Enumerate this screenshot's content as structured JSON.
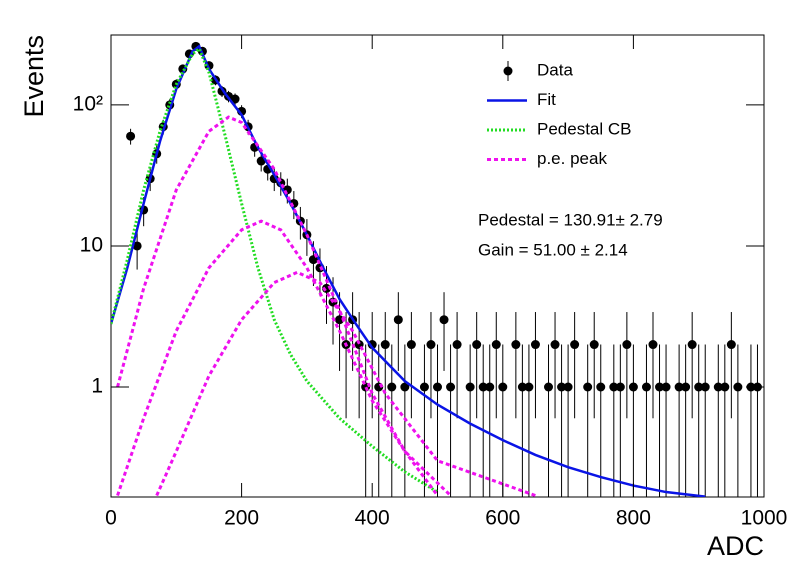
{
  "chart_data": {
    "type": "log-errorbar-fit",
    "x_label": "ADC",
    "y_label": "Events",
    "xlim": [
      0,
      1000
    ],
    "xticks": [
      0,
      200,
      400,
      600,
      800,
      1000
    ],
    "ylim": [
      0.166,
      313
    ],
    "yticks": [
      1,
      10,
      {
        "value": 100,
        "label": "10²"
      }
    ],
    "log_y": true,
    "legend": "upper-right",
    "annotations": [
      "Pedestal = 130.91± 2.79",
      "Gain = 51.00 ± 2.14"
    ],
    "series": [
      {
        "name": "Data",
        "color": "#000000",
        "x": [
          30,
          40,
          50,
          60,
          70,
          80,
          90,
          100,
          110,
          120,
          130,
          140,
          150,
          160,
          170,
          180,
          190,
          200,
          210,
          220,
          230,
          240,
          250,
          260,
          270,
          280,
          290,
          300,
          310,
          320,
          330,
          340,
          350,
          360,
          370,
          380,
          390,
          400,
          410,
          420,
          430,
          440,
          450,
          460,
          470,
          480,
          490,
          500,
          510,
          520,
          530,
          540,
          550,
          560,
          570,
          580,
          590,
          600,
          610,
          620,
          630,
          640,
          650,
          660,
          670,
          680,
          690,
          700,
          710,
          720,
          730,
          740,
          750,
          760,
          770,
          780,
          790,
          800,
          810,
          820,
          830,
          840,
          850,
          860,
          870,
          880,
          890,
          900,
          910,
          920,
          930,
          940,
          950,
          960,
          970,
          980,
          990
        ],
        "values": [
          60,
          10,
          18,
          30,
          45,
          70,
          100,
          140,
          180,
          230,
          260,
          240,
          190,
          150,
          125,
          115,
          110,
          90,
          70,
          50,
          40,
          35,
          30,
          28,
          25,
          20,
          15,
          12,
          8,
          7,
          5,
          4,
          3,
          2,
          3,
          2,
          1,
          2,
          1,
          2,
          1,
          3,
          1,
          2,
          null,
          1,
          2,
          1,
          3,
          1,
          2,
          null,
          1,
          2,
          1,
          1,
          2,
          1,
          null,
          2,
          1,
          1,
          2,
          null,
          1,
          2,
          1,
          1,
          2,
          null,
          1,
          2,
          1,
          null,
          1,
          1,
          2,
          1,
          null,
          1,
          2,
          1,
          1,
          null,
          1,
          1,
          2,
          1,
          1,
          null,
          1,
          1,
          2,
          1,
          null,
          1,
          1
        ],
        "errors": [
          7.7,
          3.2,
          4.2,
          5.5,
          6.7,
          8.4,
          10,
          11.8,
          13.4,
          15.2,
          16.1,
          15.5,
          13.8,
          12.2,
          11.2,
          10.7,
          10.5,
          9.5,
          8.4,
          7.1,
          6.3,
          5.9,
          5.5,
          5.3,
          5,
          4.5,
          3.9,
          3.5,
          2.8,
          2.6,
          2.2,
          2,
          1.7,
          1.4,
          1.7,
          1.4,
          1,
          1.4,
          1,
          1.4,
          1,
          1.7,
          1,
          1.4,
          null,
          1,
          1.4,
          1,
          1.7,
          1,
          1.4,
          null,
          1,
          1.4,
          1,
          1,
          1.4,
          1,
          null,
          1.4,
          1,
          1,
          1.4,
          null,
          1,
          1.4,
          1,
          1,
          1.4,
          null,
          1,
          1.4,
          1,
          null,
          1,
          1,
          1.4,
          1,
          null,
          1,
          1.4,
          1,
          1,
          null,
          1,
          1,
          1.4,
          1,
          1,
          null,
          1,
          1,
          1.4,
          1,
          null,
          1,
          1
        ]
      },
      {
        "name": "Fit",
        "color": "#0a14e6",
        "x": [
          0,
          25,
          50,
          75,
          100,
          125,
          135,
          150,
          175,
          200,
          225,
          250,
          275,
          300,
          325,
          350,
          375,
          400,
          450,
          500,
          550,
          600,
          650,
          700,
          750,
          800,
          850,
          910
        ],
        "values": [
          2.8,
          7,
          20,
          55,
          130,
          240,
          260,
          180,
          120,
          85,
          50,
          32,
          20,
          12,
          7,
          4.2,
          2.8,
          1.9,
          1.1,
          0.75,
          0.55,
          0.42,
          0.33,
          0.27,
          0.23,
          0.2,
          0.18,
          0.167
        ]
      },
      {
        "name": "Pedestal CB",
        "color": "#22dd22",
        "x": [
          0,
          25,
          50,
          75,
          100,
          125,
          135,
          150,
          175,
          200,
          225,
          250,
          275,
          300,
          350,
          400,
          450,
          500
        ],
        "values": [
          2.8,
          8,
          25,
          65,
          140,
          230,
          250,
          170,
          60,
          20,
          7,
          3,
          1.7,
          1.1,
          0.6,
          0.38,
          0.25,
          0.18
        ]
      },
      {
        "name": "p.e. peak",
        "color": "#ee11ee",
        "curves": [
          {
            "x": [
              10,
              50,
              100,
              150,
              180,
              200,
              250,
              300,
              350,
              400,
              450,
              500
            ],
            "values": [
              1,
              5,
              25,
              65,
              82,
              75,
              35,
              12,
              3.5,
              0.9,
              0.35,
              0.17
            ]
          },
          {
            "x": [
              10,
              50,
              100,
              150,
              200,
              230,
              260,
              300,
              350,
              400,
              450,
              520
            ],
            "values": [
              0.17,
              0.6,
              2.5,
              7,
              13,
              15,
              13,
              7,
              2.5,
              0.8,
              0.35,
              0.17
            ]
          },
          {
            "x": [
              70,
              100,
              150,
              200,
              250,
              285,
              320,
              370,
              420,
              500,
              650
            ],
            "values": [
              0.17,
              0.35,
              1.2,
              3,
              5.5,
              6.5,
              5.5,
              2.5,
              0.9,
              0.3,
              0.17
            ]
          }
        ]
      }
    ]
  }
}
